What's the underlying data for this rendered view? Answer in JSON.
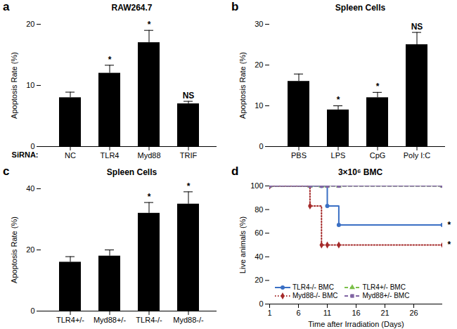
{
  "chart_data": [
    {
      "panel": "a",
      "type": "bar",
      "title": "RAW264.7",
      "x_label": "SiRNA:",
      "y_label": "Apoptosis Rate (%)",
      "categories": [
        "NC",
        "TLR4",
        "Myd88",
        "TRIF"
      ],
      "values": [
        8,
        12,
        17,
        7
      ],
      "error": [
        0.9,
        1.3,
        2,
        0.4
      ],
      "annotations": [
        null,
        "*",
        "*",
        "NS"
      ],
      "color": "#000000",
      "ylim": [
        0,
        20
      ],
      "yticks": [
        0,
        10,
        20
      ]
    },
    {
      "panel": "b",
      "type": "bar",
      "title": "Spleen Cells",
      "y_label": "Apoptosis Rate (%)",
      "categories": [
        "PBS",
        "LPS",
        "CpG",
        "Poly I:C"
      ],
      "values": [
        16,
        9,
        12,
        25
      ],
      "error": [
        1.8,
        1,
        1.3,
        3
      ],
      "annotations": [
        null,
        "*",
        "*",
        "NS"
      ],
      "color": "#000000",
      "ylim": [
        0,
        30
      ],
      "yticks": [
        0,
        10,
        20,
        30
      ]
    },
    {
      "panel": "c",
      "type": "bar",
      "title": "Spleen Cells",
      "y_label": "Apoptosis Rate (%)",
      "categories": [
        "TLR4+/-",
        "Myd88+/-",
        "TLR4-/-",
        "Myd88-/-"
      ],
      "values": [
        16,
        18,
        32,
        35
      ],
      "error": [
        1.8,
        2,
        3.5,
        4
      ],
      "annotations": [
        null,
        null,
        "*",
        "*"
      ],
      "color": "#000000",
      "ylim": [
        0,
        40
      ],
      "yticks": [
        0,
        20,
        40
      ]
    },
    {
      "panel": "d",
      "type": "line",
      "title": "3×10⁶ BMC",
      "x_label": "Time after Irradiation (Days)",
      "y_label": "Live animals (%)",
      "x": [
        1,
        8,
        10,
        11,
        13,
        31
      ],
      "series": [
        {
          "name": "TLR4-/- BMC",
          "color": "#3a6fc4",
          "values": [
            100,
            100,
            100,
            83,
            67,
            67
          ],
          "marker": "circle",
          "line_style": "solid",
          "annotation": "*"
        },
        {
          "name": "TLR4+/- BMC",
          "color": "#7cc04a",
          "values": [
            100,
            100,
            100,
            100,
            100,
            100
          ],
          "marker": "triangle",
          "line_style": "dashed"
        },
        {
          "name": "Myd88-/- BMC",
          "color": "#a52a2a",
          "values": [
            100,
            83,
            50,
            50,
            50,
            50
          ],
          "marker": "diamond",
          "line_style": "dotted",
          "annotation": "*"
        },
        {
          "name": "Myd88+/- BMC",
          "color": "#8064a2",
          "values": [
            100,
            100,
            100,
            100,
            100,
            100
          ],
          "marker": "square",
          "line_style": "dashed"
        }
      ],
      "xlim": [
        1,
        31
      ],
      "xticks": [
        1,
        6,
        11,
        16,
        21,
        26
      ],
      "ylim": [
        0,
        100
      ],
      "yticks": [
        0,
        20,
        40,
        60,
        80,
        100
      ],
      "legend": "bottom-left"
    }
  ]
}
